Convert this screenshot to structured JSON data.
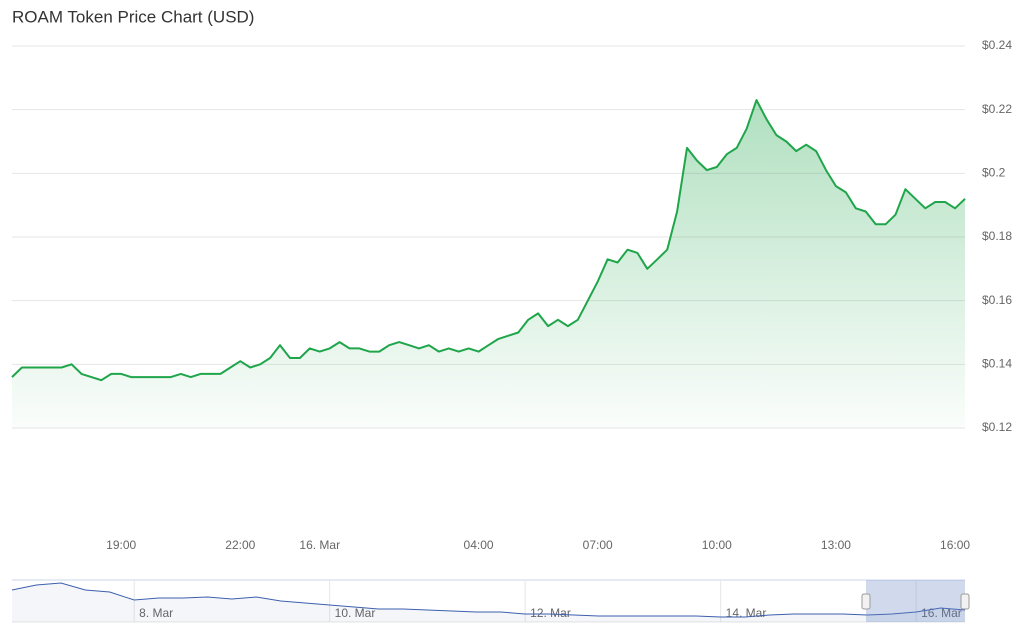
{
  "chart_data": [
    {
      "type": "area",
      "title": "ROAM Token Price Chart (USD)",
      "color": "#1fa54a",
      "grid": true,
      "categories": [
        null,
        null,
        null,
        null,
        null,
        null,
        null,
        null,
        null,
        null,
        null,
        "19:00",
        null,
        null,
        null,
        null,
        null,
        null,
        null,
        null,
        null,
        null,
        null,
        "22:00",
        null,
        null,
        null,
        null,
        null,
        null,
        null,
        "16. Mar",
        null,
        null,
        null,
        null,
        null,
        null,
        null,
        null,
        null,
        null,
        null,
        null,
        null,
        null,
        null,
        "04:00",
        null,
        null,
        null,
        null,
        null,
        null,
        null,
        null,
        null,
        null,
        null,
        "07:00",
        null,
        null,
        null,
        null,
        null,
        null,
        null,
        null,
        null,
        null,
        null,
        "10:00",
        null,
        null,
        null,
        null,
        null,
        null,
        null,
        null,
        null,
        null,
        null,
        "13:00",
        null,
        null,
        null,
        null,
        null,
        null,
        null,
        null,
        null,
        null,
        null,
        "16:00",
        null
      ],
      "values": [
        0.136,
        0.139,
        0.139,
        0.139,
        0.139,
        0.139,
        0.14,
        0.137,
        0.136,
        0.135,
        0.137,
        0.137,
        0.136,
        0.136,
        0.136,
        0.136,
        0.136,
        0.137,
        0.136,
        0.137,
        0.137,
        0.137,
        0.139,
        0.141,
        0.139,
        0.14,
        0.142,
        0.146,
        0.142,
        0.142,
        0.145,
        0.144,
        0.145,
        0.147,
        0.145,
        0.145,
        0.144,
        0.144,
        0.146,
        0.147,
        0.146,
        0.145,
        0.146,
        0.144,
        0.145,
        0.144,
        0.145,
        0.144,
        0.146,
        0.148,
        0.149,
        0.15,
        0.154,
        0.156,
        0.152,
        0.154,
        0.152,
        0.154,
        0.16,
        0.166,
        0.173,
        0.172,
        0.176,
        0.175,
        0.17,
        0.173,
        0.176,
        0.188,
        0.208,
        0.204,
        0.201,
        0.202,
        0.206,
        0.208,
        0.214,
        0.223,
        0.217,
        0.212,
        0.21,
        0.207,
        0.209,
        0.207,
        0.201,
        0.196,
        0.194,
        0.189,
        0.188,
        0.184,
        0.184,
        0.187,
        0.195,
        0.192,
        0.189,
        0.191,
        0.191,
        0.189,
        0.192
      ],
      "ylim": [
        0.12,
        0.24
      ],
      "yticks": [
        {
          "value": 0.12,
          "label": "$0.12"
        },
        {
          "value": 0.14,
          "label": "$0.14"
        },
        {
          "value": 0.16,
          "label": "$0.16"
        },
        {
          "value": 0.18,
          "label": "$0.18"
        },
        {
          "value": 0.2,
          "label": "$0.2"
        },
        {
          "value": 0.22,
          "label": "$0.22"
        },
        {
          "value": 0.24,
          "label": "$0.24"
        }
      ]
    },
    {
      "type": "navigator",
      "color": "#3d5fae",
      "categories": [
        null,
        null,
        null,
        null,
        null,
        "8. Mar",
        null,
        null,
        null,
        null,
        null,
        null,
        null,
        "10. Mar",
        null,
        null,
        null,
        null,
        null,
        null,
        null,
        "12. Mar",
        null,
        null,
        null,
        null,
        null,
        null,
        null,
        "14. Mar",
        null,
        null,
        null,
        null,
        null,
        null,
        null,
        "16. Mar",
        null,
        null
      ],
      "values": [
        0.332,
        0.372,
        0.388,
        0.332,
        0.316,
        0.252,
        0.268,
        0.268,
        0.276,
        0.26,
        0.276,
        0.244,
        0.228,
        0.212,
        0.196,
        0.18,
        0.18,
        0.172,
        0.164,
        0.156,
        0.156,
        0.14,
        0.14,
        0.132,
        0.124,
        0.124,
        0.124,
        0.124,
        0.124,
        0.116,
        0.116,
        0.132,
        0.14,
        0.14,
        0.14,
        0.132,
        0.14,
        0.156,
        0.188,
        0.172
      ]
    }
  ]
}
